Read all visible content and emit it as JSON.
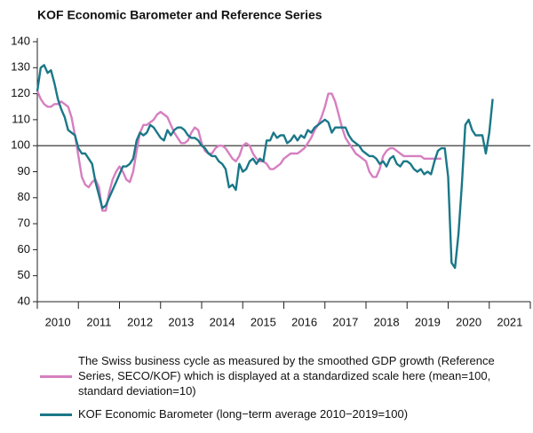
{
  "chart_data": {
    "type": "line",
    "title": "KOF Economic Barometer and Reference Series",
    "xlim": [
      2010,
      2022
    ],
    "xticks": [
      {
        "value": 2010,
        "label": "2010"
      },
      {
        "value": 2011,
        "label": "2011"
      },
      {
        "value": 2012,
        "label": "2012"
      },
      {
        "value": 2013,
        "label": "2013"
      },
      {
        "value": 2014,
        "label": "2014"
      },
      {
        "value": 2015,
        "label": "2015"
      },
      {
        "value": 2016,
        "label": "2016"
      },
      {
        "value": 2017,
        "label": "2017"
      },
      {
        "value": 2018,
        "label": "2018"
      },
      {
        "value": 2019,
        "label": "2019"
      },
      {
        "value": 2020,
        "label": "2020"
      },
      {
        "value": 2021,
        "label": "2021"
      }
    ],
    "ylim": [
      40,
      140
    ],
    "yticks": [
      40,
      50,
      60,
      70,
      80,
      90,
      100,
      110,
      120,
      130,
      140
    ],
    "reference_line": 100,
    "x": [
      2010,
      2010.083,
      2010.167,
      2010.25,
      2010.333,
      2010.417,
      2010.5,
      2010.583,
      2010.667,
      2010.75,
      2010.833,
      2010.917,
      2011,
      2011.083,
      2011.167,
      2011.25,
      2011.333,
      2011.417,
      2011.5,
      2011.583,
      2011.667,
      2011.75,
      2011.833,
      2011.917,
      2012,
      2012.083,
      2012.167,
      2012.25,
      2012.333,
      2012.417,
      2012.5,
      2012.583,
      2012.667,
      2012.75,
      2012.833,
      2012.917,
      2013,
      2013.083,
      2013.167,
      2013.25,
      2013.333,
      2013.417,
      2013.5,
      2013.583,
      2013.667,
      2013.75,
      2013.833,
      2013.917,
      2014,
      2014.083,
      2014.167,
      2014.25,
      2014.333,
      2014.417,
      2014.5,
      2014.583,
      2014.667,
      2014.75,
      2014.833,
      2014.917,
      2015,
      2015.083,
      2015.167,
      2015.25,
      2015.333,
      2015.417,
      2015.5,
      2015.583,
      2015.667,
      2015.75,
      2015.833,
      2015.917,
      2016,
      2016.083,
      2016.167,
      2016.25,
      2016.333,
      2016.417,
      2016.5,
      2016.583,
      2016.667,
      2016.75,
      2016.833,
      2016.917,
      2017,
      2017.083,
      2017.167,
      2017.25,
      2017.333,
      2017.417,
      2017.5,
      2017.583,
      2017.667,
      2017.75,
      2017.833,
      2017.917,
      2018,
      2018.083,
      2018.167,
      2018.25,
      2018.333,
      2018.417,
      2018.5,
      2018.583,
      2018.667,
      2018.75,
      2018.833,
      2018.917,
      2019,
      2019.083,
      2019.167,
      2019.25,
      2019.333,
      2019.417,
      2019.5,
      2019.583,
      2019.667,
      2019.75,
      2019.833,
      2019.917,
      2020,
      2020.083,
      2020.167,
      2020.25,
      2020.333,
      2020.417,
      2020.5,
      2020.583,
      2020.667,
      2020.75,
      2020.833,
      2020.917,
      2021,
      2021.083
    ],
    "series": [
      {
        "name": "The Swiss business cycle as measured by the smoothed GDP growth (Reference Series, SECO/KOF) which is displayed at a standardized scale here (mean=100, standard deviation=10)",
        "color": "#d67fc0",
        "values": [
          121,
          118,
          116,
          115,
          115,
          116,
          116,
          117,
          116,
          115,
          111,
          104,
          96,
          88,
          85,
          84,
          86,
          87,
          84,
          75,
          75,
          82,
          87,
          90,
          92,
          90,
          87,
          86,
          90,
          98,
          105,
          108,
          108,
          109,
          110,
          112,
          113,
          112,
          111,
          108,
          105,
          103,
          101,
          101,
          102,
          105,
          107,
          106,
          101,
          98,
          97,
          97,
          99,
          100,
          100,
          99,
          97,
          95,
          94,
          96,
          100,
          101,
          100,
          97,
          95,
          94,
          94,
          93,
          91,
          91,
          92,
          93,
          95,
          96,
          97,
          97,
          97,
          98,
          99,
          101,
          103,
          106,
          108,
          111,
          115,
          120,
          120,
          117,
          112,
          107,
          103,
          101,
          99,
          97,
          96,
          95,
          94,
          90,
          88,
          88,
          91,
          96,
          98,
          99,
          99,
          98,
          97,
          96,
          96,
          96,
          96,
          96,
          96,
          95,
          95,
          95,
          95,
          95,
          95,
          null,
          null,
          null,
          null,
          null,
          null,
          null,
          null,
          null,
          null,
          null,
          null,
          null,
          null,
          null
        ]
      },
      {
        "name": "KOF Economic Barometer (long−term average 2010−2019=100)",
        "color": "#1a7888",
        "values": [
          121,
          130,
          131,
          128,
          129,
          124,
          118,
          114,
          111,
          106,
          105,
          104,
          99,
          97,
          97,
          95,
          93,
          86,
          81,
          76,
          77,
          80,
          83,
          86,
          89,
          92,
          92,
          93,
          95,
          102,
          105,
          104,
          105,
          108,
          107,
          105,
          103,
          102,
          106,
          104,
          106,
          107,
          107,
          106,
          104,
          103,
          103,
          102,
          100,
          99,
          97,
          96,
          96,
          94,
          93,
          91,
          84,
          85,
          83,
          93,
          90,
          91,
          94,
          95,
          93,
          95,
          94,
          102,
          102,
          105,
          103,
          104,
          104,
          101,
          102,
          104,
          102,
          104,
          103,
          106,
          105,
          107,
          108,
          109,
          110,
          109,
          105,
          107,
          107,
          107,
          107,
          104,
          102,
          101,
          100,
          98,
          97,
          96,
          96,
          95,
          93,
          94,
          92,
          95,
          96,
          93,
          92,
          94,
          94,
          93,
          91,
          90,
          91,
          89,
          90,
          89,
          94,
          98,
          99,
          99,
          88,
          55,
          53,
          66,
          85,
          108,
          110,
          106,
          104,
          104,
          104,
          97,
          105,
          118
        ]
      }
    ]
  }
}
